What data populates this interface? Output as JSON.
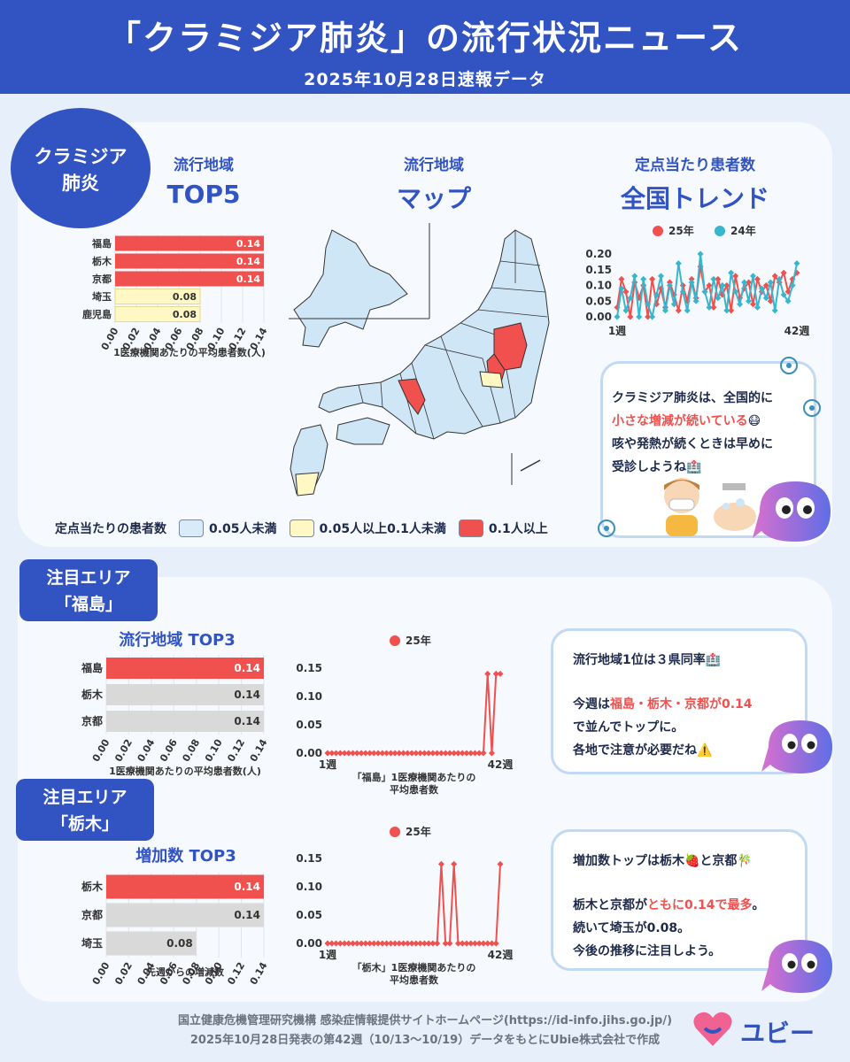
{
  "header": {
    "title": "「クラミジア肺炎」の流行状況ニュース",
    "subtitle": "2025年10月28日速報データ"
  },
  "badge": {
    "line1": "クラミジア",
    "line2": "肺炎"
  },
  "columns": {
    "top5": {
      "small": "流行地域",
      "big": "TOP5"
    },
    "map": {
      "small": "流行地域",
      "big": "マップ"
    },
    "trend": {
      "small": "定点当たり患者数",
      "big": "全国トレンド"
    }
  },
  "map": {
    "legend_title": "定点当たりの患者数",
    "legend": [
      {
        "label": "0.05人未満",
        "color": "#d8ebf9"
      },
      {
        "label": "0.05人以上0.1人未満",
        "color": "#fff7c4"
      },
      {
        "label": "0.1人以上",
        "color": "#f0504e"
      }
    ],
    "red_regions": [
      "福島",
      "栃木",
      "京都"
    ],
    "yellow_regions": [
      "埼玉",
      "鹿児島"
    ]
  },
  "bubble1": {
    "line1": "クラミジア肺炎は、全国的に",
    "line2a": "小さな増減が続いている",
    "line2b": "😷",
    "line3": "咳や発熱が続くときは早めに",
    "line4": "受診しようね🏥"
  },
  "area1": {
    "tag1": "注目エリア",
    "tag2": "「福島」",
    "chart_title": "流行地域 TOP3"
  },
  "area2": {
    "tag1": "注目エリア",
    "tag2": "「栃木」",
    "chart_title": "増加数 TOP3"
  },
  "bubble2": {
    "l1": "流行地域1位は３県同率🏥",
    "l2a": "今週は",
    "l2b": "福島・栃木・京都が0.14",
    "l3": "で並んでトップに。",
    "l4": "各地で注意が必要だね⚠️"
  },
  "bubble3": {
    "l1": "増加数トップは栃木🍓と京都🎋",
    "l2a": "栃木と京都が",
    "l2b": "ともに0.14で最多",
    "l2c": "。",
    "l3": "続いて埼玉が0.08。",
    "l4": "今後の推移に注目しよう。"
  },
  "footer": {
    "line1": "国立健康危機管理研究機構 感染症情報提供サイトホームページ(https://id-info.jihs.go.jp/)",
    "line2": "2025年10月28日発表の第42週（10/13〜10/19）データをもとにUbie株式会社で作成"
  },
  "logo": {
    "text": "ユビー"
  },
  "colors": {
    "accent": "#3254c3",
    "red": "#f0504e",
    "yellow": "#fff7c4",
    "teal": "#36b6cf",
    "gray": "#d9d9d9"
  },
  "chart_data": [
    {
      "type": "bar",
      "orientation": "horizontal",
      "categories": [
        "福島",
        "栃木",
        "京都",
        "埼玉",
        "鹿児島"
      ],
      "values": [
        0.14,
        0.14,
        0.14,
        0.08,
        0.08
      ],
      "bar_colors": [
        "#f0504e",
        "#f0504e",
        "#f0504e",
        "#fff7c4",
        "#fff7c4"
      ],
      "xlabel": "1医療機関あたりの平均患者数(人)",
      "xticks": [
        "0.00",
        "0.02",
        "0.04",
        "0.06",
        "0.08",
        "0.10",
        "0.12",
        "0.14"
      ],
      "xlim": [
        0,
        0.14
      ]
    },
    {
      "type": "line",
      "xlabels": [
        "1週",
        "42週"
      ],
      "yticks": [
        "0.00",
        "0.05",
        "0.10",
        "0.15",
        "0.20"
      ],
      "ylim": [
        0,
        0.2
      ],
      "series": [
        {
          "name": "25年",
          "color": "#f0504e",
          "values": [
            0.03,
            0.12,
            0.08,
            0.0,
            0.11,
            0.06,
            0.1,
            0.0,
            0.12,
            0.04,
            0.09,
            0.03,
            0.11,
            0.07,
            0.02,
            0.1,
            0.05,
            0.12,
            0.06,
            0.16,
            0.08,
            0.1,
            0.03,
            0.12,
            0.07,
            0.1,
            0.02,
            0.13,
            0.06,
            0.09,
            0.11,
            0.04,
            0.12,
            0.08,
            0.1,
            0.05,
            0.13,
            0.11,
            0.14,
            0.08,
            0.12,
            0.14
          ]
        },
        {
          "name": "24年",
          "color": "#36b6cf",
          "values": [
            0.0,
            0.09,
            0.02,
            0.06,
            0.13,
            0.0,
            0.12,
            0.04,
            0.0,
            0.07,
            0.13,
            0.02,
            0.1,
            0.04,
            0.17,
            0.08,
            0.02,
            0.11,
            0.05,
            0.2,
            0.08,
            0.03,
            0.12,
            0.06,
            0.1,
            0.02,
            0.14,
            0.08,
            0.04,
            0.11,
            0.05,
            0.13,
            0.03,
            0.09,
            0.06,
            0.11,
            0.02,
            0.12,
            0.07,
            0.05,
            0.1,
            0.17
          ]
        }
      ]
    },
    {
      "type": "bar",
      "orientation": "horizontal",
      "categories": [
        "福島",
        "栃木",
        "京都"
      ],
      "values": [
        0.14,
        0.14,
        0.14
      ],
      "bar_colors": [
        "#f0504e",
        "#d9d9d9",
        "#d9d9d9"
      ],
      "xlabel": "1医療機関あたりの平均患者数(人)",
      "xticks": [
        "0.00",
        "0.02",
        "0.04",
        "0.06",
        "0.08",
        "0.10",
        "0.12",
        "0.14"
      ],
      "xlim": [
        0,
        0.14
      ]
    },
    {
      "type": "line",
      "xlabels": [
        "1週",
        "42週"
      ],
      "yticks": [
        "0.00",
        "0.05",
        "0.10",
        "0.15"
      ],
      "ylim": [
        0,
        0.15
      ],
      "xlabel": "「福島」1医療機関あたりの平均患者数",
      "series": [
        {
          "name": "25年",
          "color": "#f0504e",
          "values": [
            0,
            0,
            0,
            0,
            0,
            0,
            0,
            0,
            0,
            0,
            0,
            0,
            0,
            0,
            0,
            0,
            0,
            0,
            0,
            0,
            0,
            0,
            0,
            0,
            0,
            0,
            0,
            0,
            0,
            0,
            0,
            0,
            0,
            0,
            0,
            0,
            0,
            0,
            0.14,
            0,
            0.14,
            0.14
          ]
        }
      ]
    },
    {
      "type": "bar",
      "orientation": "horizontal",
      "categories": [
        "栃木",
        "京都",
        "埼玉"
      ],
      "values": [
        0.14,
        0.14,
        0.08
      ],
      "bar_colors": [
        "#f0504e",
        "#d9d9d9",
        "#d9d9d9"
      ],
      "xlabel": "先週からの増減数",
      "xticks": [
        "0.00",
        "0.02",
        "0.04",
        "0.06",
        "0.08",
        "0.10",
        "0.12",
        "0.14"
      ],
      "xlim": [
        0,
        0.14
      ]
    },
    {
      "type": "line",
      "xlabels": [
        "1週",
        "42週"
      ],
      "yticks": [
        "0.00",
        "0.05",
        "0.10",
        "0.15"
      ],
      "ylim": [
        0,
        0.15
      ],
      "xlabel": "「栃木」1医療機関あたりの平均患者数",
      "series": [
        {
          "name": "25年",
          "color": "#f0504e",
          "values": [
            0,
            0,
            0,
            0,
            0,
            0,
            0,
            0,
            0,
            0,
            0,
            0,
            0,
            0,
            0,
            0,
            0,
            0,
            0,
            0,
            0,
            0,
            0,
            0,
            0,
            0,
            0,
            0.14,
            0,
            0,
            0.14,
            0,
            0,
            0,
            0,
            0,
            0,
            0,
            0,
            0,
            0,
            0.14
          ]
        }
      ]
    }
  ]
}
